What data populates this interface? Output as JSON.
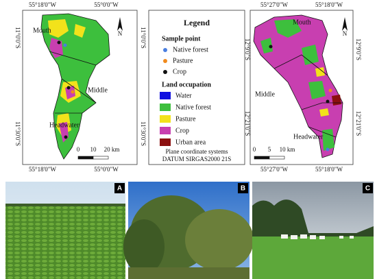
{
  "left_map": {
    "top_coords": [
      "55°18'0\"W",
      "55°0'0\"W"
    ],
    "bottom_coords": [
      "55°18'0\"W",
      "55°0'0\"W"
    ],
    "left_coords": [
      "11°0'0\"S",
      "11°30'0\"S"
    ],
    "right_coords": [
      "11°0'0\"S",
      "11°30'0\"S"
    ],
    "regions": [
      "Mouth",
      "Middle",
      "Headwater"
    ],
    "scale": [
      "0",
      "10",
      "20 km"
    ],
    "north": "N"
  },
  "legend": {
    "title": "Legend",
    "sample_heading": "Sample point",
    "sample_items": [
      "Native forest",
      "Pasture",
      "Crop"
    ],
    "land_heading": "Land occupation",
    "land_items": [
      "Water",
      "Native forest",
      "Pasture",
      "Crop",
      "Urban area"
    ],
    "note": [
      "Plane coordinate systems",
      "DATUM SIRGAS2000 21S"
    ]
  },
  "right_map": {
    "top_coords": [
      "55°27'0\"W",
      "55°18'0\"W"
    ],
    "bottom_coords": [
      "55°27'0\"W",
      "55°18'0\"W"
    ],
    "left_coords": [
      "12°9'0\"S",
      "12°21'0\"S"
    ],
    "right_coords": [
      "12°9'0\"S",
      "12°21'0\"S"
    ],
    "regions": [
      "Mouth",
      "Middle",
      "Headwater"
    ],
    "scale": [
      "0",
      "5",
      "10 km"
    ],
    "north": "N"
  },
  "photos": {
    "labels": [
      "A",
      "B",
      "C"
    ]
  }
}
